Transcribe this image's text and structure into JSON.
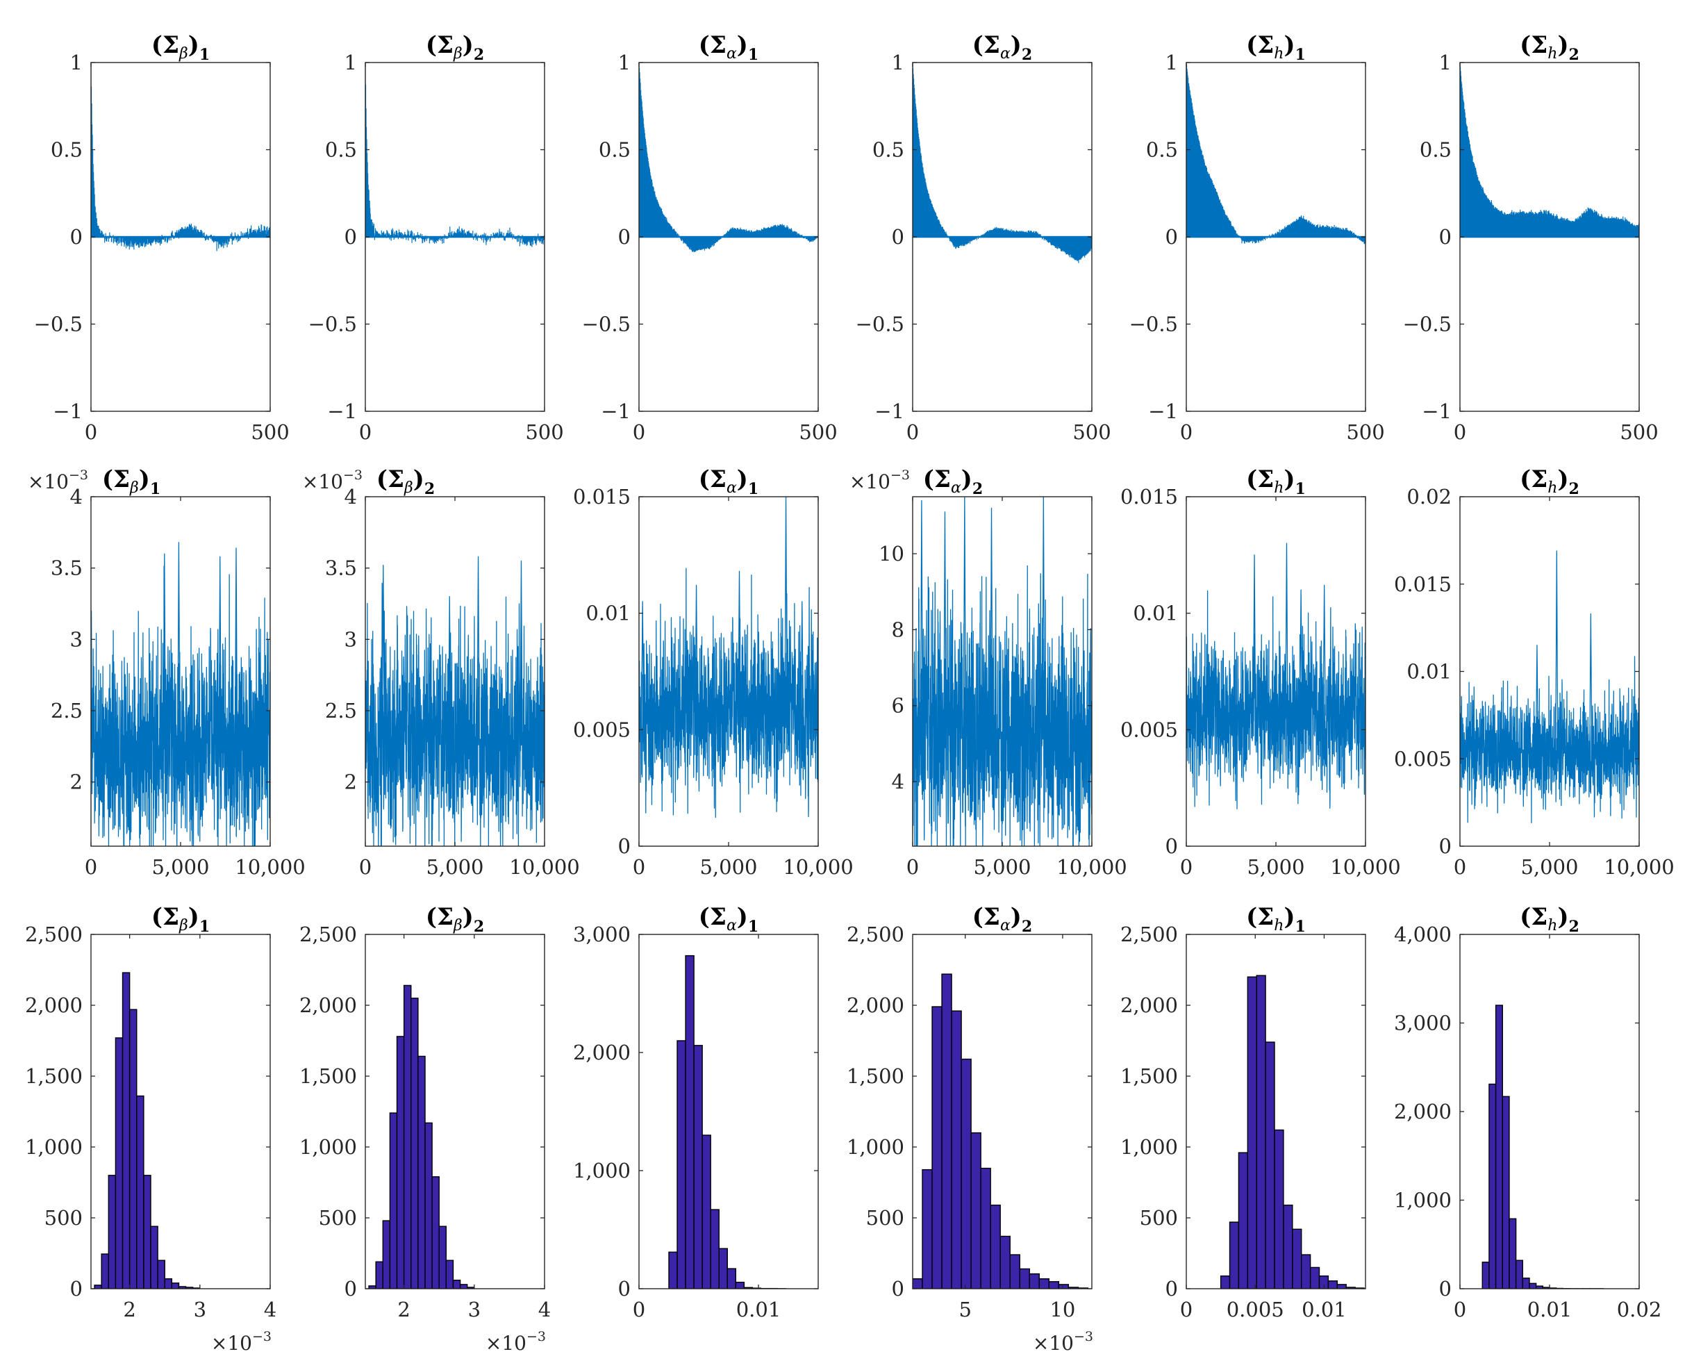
{
  "colors": {
    "trace": "#0072BD",
    "hist_fill": "#3B24A8",
    "hist_edge": "#000000",
    "axis": "#262626"
  },
  "chart_data": [
    {
      "row": "autocorrelation",
      "type": "area",
      "title": {
        "sym": "Σ",
        "sub": "β",
        "num": "1"
      },
      "xlim": [
        0,
        500
      ],
      "ylim": [
        -1,
        1
      ],
      "xticks": [
        "0",
        "500"
      ],
      "yticks": [
        "1",
        "0.5",
        "0",
        "−0.5",
        "−1"
      ],
      "acf": {
        "decay": 7,
        "noise": 0.03,
        "wave": [
          [
            0,
            0
          ],
          [
            40,
            0.002
          ],
          [
            120,
            -0.05
          ],
          [
            200,
            -0.02
          ],
          [
            280,
            0.06
          ],
          [
            360,
            -0.04
          ],
          [
            440,
            0.02
          ],
          [
            490,
            0.05
          ],
          [
            500,
            0.03
          ]
        ]
      }
    },
    {
      "row": "autocorrelation",
      "type": "area",
      "title": {
        "sym": "Σ",
        "sub": "β",
        "num": "2"
      },
      "xlim": [
        0,
        500
      ],
      "ylim": [
        -1,
        1
      ],
      "xticks": [
        "0",
        "500"
      ],
      "yticks": [
        "1",
        "0.5",
        "0",
        "−0.5",
        "−1"
      ],
      "acf": {
        "decay": 7,
        "noise": 0.03,
        "wave": [
          [
            0,
            0
          ],
          [
            60,
            0.02
          ],
          [
            110,
            0.01
          ],
          [
            200,
            -0.02
          ],
          [
            260,
            0.03
          ],
          [
            330,
            -0.01
          ],
          [
            400,
            0.02
          ],
          [
            450,
            -0.03
          ],
          [
            500,
            -0.01
          ]
        ]
      }
    },
    {
      "row": "autocorrelation",
      "type": "area",
      "title": {
        "sym": "Σ",
        "sub": "α",
        "num": "1"
      },
      "xlim": [
        0,
        500
      ],
      "ylim": [
        -1,
        1
      ],
      "xticks": [
        "0",
        "500"
      ],
      "yticks": [
        "1",
        "0.5",
        "0",
        "−0.5",
        "−1"
      ],
      "acf": {
        "decay": 30,
        "noise": 0.01,
        "wave": [
          [
            0,
            0
          ],
          [
            60,
            0.03
          ],
          [
            100,
            0
          ],
          [
            150,
            -0.09
          ],
          [
            200,
            -0.06
          ],
          [
            260,
            0.05
          ],
          [
            320,
            0.03
          ],
          [
            400,
            0.07
          ],
          [
            450,
            0.01
          ],
          [
            480,
            -0.03
          ],
          [
            500,
            0
          ]
        ]
      }
    },
    {
      "row": "autocorrelation",
      "type": "area",
      "title": {
        "sym": "Σ",
        "sub": "α",
        "num": "2"
      },
      "xlim": [
        0,
        500
      ],
      "ylim": [
        -1,
        1
      ],
      "xticks": [
        "0",
        "500"
      ],
      "yticks": [
        "1",
        "0.5",
        "0",
        "−0.5",
        "−1"
      ],
      "acf": {
        "decay": 30,
        "noise": 0.01,
        "wave": [
          [
            0,
            0
          ],
          [
            60,
            0.02
          ],
          [
            90,
            -0.02
          ],
          [
            120,
            -0.08
          ],
          [
            170,
            -0.02
          ],
          [
            230,
            0.05
          ],
          [
            280,
            0.03
          ],
          [
            340,
            0.03
          ],
          [
            380,
            -0.03
          ],
          [
            420,
            -0.08
          ],
          [
            460,
            -0.14
          ],
          [
            490,
            -0.09
          ],
          [
            500,
            -0.06
          ]
        ]
      }
    },
    {
      "row": "autocorrelation",
      "type": "area",
      "title": {
        "sym": "Σ",
        "sub": "h",
        "num": "1"
      },
      "xlim": [
        0,
        500
      ],
      "ylim": [
        -1,
        1
      ],
      "xticks": [
        "0",
        "500"
      ],
      "yticks": [
        "1",
        "0.5",
        "0",
        "−0.5",
        "−1"
      ],
      "acf": {
        "decay": 55,
        "noise": 0.012,
        "wave": [
          [
            0,
            0
          ],
          [
            80,
            0.05
          ],
          [
            130,
            -0.04
          ],
          [
            160,
            -0.08
          ],
          [
            210,
            -0.04
          ],
          [
            260,
            0.02
          ],
          [
            320,
            0.11
          ],
          [
            360,
            0.06
          ],
          [
            420,
            0.05
          ],
          [
            460,
            0.03
          ],
          [
            500,
            -0.04
          ]
        ]
      }
    },
    {
      "row": "autocorrelation",
      "type": "area",
      "title": {
        "sym": "Σ",
        "sub": "h",
        "num": "2"
      },
      "xlim": [
        0,
        500
      ],
      "ylim": [
        -1,
        1
      ],
      "xticks": [
        "0",
        "500"
      ],
      "yticks": [
        "1",
        "0.5",
        "0",
        "−0.5",
        "−1"
      ],
      "acf": {
        "decay": 35,
        "noise": 0.015,
        "wave": [
          [
            0,
            0
          ],
          [
            40,
            0.1
          ],
          [
            80,
            0.11
          ],
          [
            120,
            0.1
          ],
          [
            170,
            0.13
          ],
          [
            240,
            0.14
          ],
          [
            280,
            0.1
          ],
          [
            320,
            0.09
          ],
          [
            360,
            0.16
          ],
          [
            400,
            0.11
          ],
          [
            460,
            0.1
          ],
          [
            490,
            0.05
          ],
          [
            500,
            0.08
          ]
        ]
      }
    },
    {
      "row": "trace",
      "type": "line",
      "title": {
        "sym": "Σ",
        "sub": "β",
        "num": "1"
      },
      "multiplier": {
        "base": "×10",
        "exp": "−3"
      },
      "n": 10000,
      "xlim": [
        0,
        10000
      ],
      "ylim": [
        1.55,
        4
      ],
      "xticks": [
        "0",
        "5,000",
        "10,000"
      ],
      "yticks": [
        "2",
        "2.5",
        "3",
        "3.5",
        "4"
      ],
      "ytickvals": [
        2,
        2.5,
        3,
        3.5,
        4
      ],
      "sample": {
        "mean": 2.25,
        "sd": 0.33,
        "peaks": [
          [
            4900,
            3.68
          ],
          [
            8100,
            3.64
          ],
          [
            7200,
            3.58
          ],
          [
            4100,
            3.6
          ]
        ]
      }
    },
    {
      "row": "trace",
      "type": "line",
      "title": {
        "sym": "Σ",
        "sub": "β",
        "num": "2"
      },
      "multiplier": {
        "base": "×10",
        "exp": "−3"
      },
      "n": 10000,
      "xlim": [
        0,
        10000
      ],
      "ylim": [
        1.55,
        4
      ],
      "xticks": [
        "0",
        "5,000",
        "10,000"
      ],
      "yticks": [
        "2",
        "2.5",
        "3",
        "3.5",
        "4"
      ],
      "ytickvals": [
        2,
        2.5,
        3,
        3.5,
        4
      ],
      "sample": {
        "mean": 2.3,
        "sd": 0.33,
        "peaks": [
          [
            1000,
            3.52
          ],
          [
            6300,
            3.58
          ],
          [
            8700,
            3.55
          ],
          [
            4700,
            3.3
          ]
        ]
      }
    },
    {
      "row": "trace",
      "type": "line",
      "title": {
        "sym": "Σ",
        "sub": "α",
        "num": "1"
      },
      "n": 10000,
      "xlim": [
        0,
        10000
      ],
      "ylim": [
        0,
        0.015
      ],
      "xticks": [
        "0",
        "5,000",
        "10,000"
      ],
      "yticks": [
        "0",
        "0.005",
        "0.01",
        "0.015"
      ],
      "ytickvals": [
        0,
        0.005,
        0.01,
        0.015
      ],
      "sample": {
        "mean": 0.0058,
        "sd": 0.0016,
        "peaks": [
          [
            8200,
            0.015
          ],
          [
            5600,
            0.0118
          ],
          [
            3200,
            0.0112
          ],
          [
            9100,
            0.0105
          ],
          [
            200,
            0.0105
          ]
        ]
      }
    },
    {
      "row": "trace",
      "type": "line",
      "title": {
        "sym": "Σ",
        "sub": "α",
        "num": "2"
      },
      "multiplier": {
        "base": "×10",
        "exp": "−3"
      },
      "n": 10000,
      "xlim": [
        0,
        10000
      ],
      "ylim": [
        2.3,
        11.5
      ],
      "xticks": [
        "0",
        "5,000",
        "10,000"
      ],
      "yticks": [
        "4",
        "6",
        "8",
        "10"
      ],
      "ytickvals": [
        4,
        6,
        8,
        10
      ],
      "sample": {
        "mean": 5.3,
        "sd": 1.45,
        "peaks": [
          [
            2900,
            11.5
          ],
          [
            7300,
            11.5
          ],
          [
            500,
            11.4
          ],
          [
            1800,
            11.1
          ],
          [
            4400,
            11.2
          ]
        ]
      }
    },
    {
      "row": "trace",
      "type": "line",
      "title": {
        "sym": "Σ",
        "sub": "h",
        "num": "1"
      },
      "n": 10000,
      "xlim": [
        0,
        10000
      ],
      "ylim": [
        0,
        0.015
      ],
      "xticks": [
        "0",
        "5,000",
        "10,000"
      ],
      "yticks": [
        "0",
        "0.005",
        "0.01",
        "0.015"
      ],
      "ytickvals": [
        0,
        0.005,
        0.01,
        0.015
      ],
      "sample": {
        "mean": 0.0056,
        "sd": 0.0014,
        "peaks": [
          [
            5600,
            0.013
          ],
          [
            3800,
            0.0125
          ],
          [
            7700,
            0.0112
          ],
          [
            6400,
            0.011
          ]
        ]
      }
    },
    {
      "row": "trace",
      "type": "line",
      "title": {
        "sym": "Σ",
        "sub": "h",
        "num": "2"
      },
      "n": 10000,
      "xlim": [
        0,
        10000
      ],
      "ylim": [
        0,
        0.02
      ],
      "xticks": [
        "0",
        "5,000",
        "10,000"
      ],
      "yticks": [
        "0",
        "0.005",
        "0.01",
        "0.015",
        "0.02"
      ],
      "ytickvals": [
        0,
        0.005,
        0.01,
        0.015,
        0.02
      ],
      "sample": {
        "mean": 0.0055,
        "sd": 0.0014,
        "peaks": [
          [
            5400,
            0.0169
          ],
          [
            7300,
            0.0133
          ],
          [
            4300,
            0.0115
          ]
        ]
      }
    },
    {
      "row": "histogram",
      "type": "bar",
      "title": {
        "sym": "Σ",
        "sub": "β",
        "num": "1"
      },
      "multiplier": {
        "base": "×10",
        "exp": "−3"
      },
      "xlim": [
        1.45,
        4
      ],
      "ylim": [
        0,
        2500
      ],
      "xticks": [
        "2",
        "3",
        "4"
      ],
      "xtickvals": [
        2,
        3,
        4
      ],
      "yticks": [
        "0",
        "500",
        "1,000",
        "1,500",
        "2,000",
        "2,500"
      ],
      "ytickvals": [
        0,
        500,
        1000,
        1500,
        2000,
        2500
      ],
      "bin_start": 1.5,
      "bin_width": 0.1,
      "counts": [
        25,
        245,
        800,
        1770,
        2230,
        1970,
        1360,
        800,
        440,
        200,
        70,
        40,
        15,
        10,
        5
      ]
    },
    {
      "row": "histogram",
      "type": "bar",
      "title": {
        "sym": "Σ",
        "sub": "β",
        "num": "2"
      },
      "multiplier": {
        "base": "×10",
        "exp": "−3"
      },
      "xlim": [
        1.45,
        4
      ],
      "ylim": [
        0,
        2500
      ],
      "xticks": [
        "2",
        "3",
        "4"
      ],
      "xtickvals": [
        2,
        3,
        4
      ],
      "yticks": [
        "0",
        "500",
        "1,000",
        "1,500",
        "2,000",
        "2,500"
      ],
      "ytickvals": [
        0,
        500,
        1000,
        1500,
        2000,
        2500
      ],
      "bin_start": 1.5,
      "bin_width": 0.1,
      "counts": [
        20,
        190,
        480,
        1240,
        1780,
        2140,
        2050,
        1640,
        1170,
        790,
        440,
        200,
        60,
        30,
        10
      ]
    },
    {
      "row": "histogram",
      "type": "bar",
      "title": {
        "sym": "Σ",
        "sub": "α",
        "num": "1"
      },
      "xlim": [
        0,
        0.015
      ],
      "ylim": [
        0,
        3000
      ],
      "xticks": [
        "0",
        "0.01"
      ],
      "xtickvals": [
        0,
        0.01
      ],
      "yticks": [
        "0",
        "1,000",
        "2,000",
        "3,000"
      ],
      "ytickvals": [
        0,
        1000,
        2000,
        3000
      ],
      "bin_start": 0.0025,
      "bin_width": 0.0007,
      "counts": [
        310,
        2100,
        2820,
        2060,
        1300,
        670,
        340,
        170,
        55,
        10,
        5,
        2,
        2,
        1
      ]
    },
    {
      "row": "histogram",
      "type": "bar",
      "title": {
        "sym": "Σ",
        "sub": "α",
        "num": "2"
      },
      "multiplier": {
        "base": "×10",
        "exp": "−3"
      },
      "xlim": [
        2.3,
        11.5
      ],
      "ylim": [
        0,
        2500
      ],
      "xticks": [
        "5",
        "10"
      ],
      "xtickvals": [
        5,
        10
      ],
      "yticks": [
        "0",
        "500",
        "1,000",
        "1,500",
        "2,000",
        "2,500"
      ],
      "ytickvals": [
        0,
        500,
        1000,
        1500,
        2000,
        2500
      ],
      "bin_start": 2.3,
      "bin_width": 0.5,
      "counts": [
        70,
        840,
        1990,
        2220,
        1960,
        1620,
        1100,
        850,
        590,
        370,
        240,
        140,
        105,
        70,
        50,
        30,
        10,
        5
      ]
    },
    {
      "row": "histogram",
      "type": "bar",
      "title": {
        "sym": "Σ",
        "sub": "h",
        "num": "1"
      },
      "xlim": [
        0,
        0.013
      ],
      "ylim": [
        0,
        2500
      ],
      "xticks": [
        "0",
        "0.005",
        "0.01"
      ],
      "xtickvals": [
        0,
        0.005,
        0.01
      ],
      "yticks": [
        "0",
        "500",
        "1,000",
        "1,500",
        "2,000",
        "2,500"
      ],
      "ytickvals": [
        0,
        500,
        1000,
        1500,
        2000,
        2500
      ],
      "bin_start": 0.0025,
      "bin_width": 0.00065,
      "counts": [
        90,
        470,
        960,
        2200,
        2210,
        1740,
        1120,
        590,
        420,
        240,
        150,
        90,
        55,
        30,
        10,
        5
      ]
    },
    {
      "row": "histogram",
      "type": "bar",
      "title": {
        "sym": "Σ",
        "sub": "h",
        "num": "2"
      },
      "xlim": [
        0,
        0.02
      ],
      "ylim": [
        0,
        4000
      ],
      "xticks": [
        "0",
        "0.01",
        "0.02"
      ],
      "xtickvals": [
        0,
        0.01,
        0.02
      ],
      "yticks": [
        "0",
        "1,000",
        "2,000",
        "3,000",
        "4,000"
      ],
      "ytickvals": [
        0,
        1000,
        2000,
        3000,
        4000
      ],
      "bin_start": 0.0025,
      "bin_width": 0.00075,
      "counts": [
        300,
        2310,
        3200,
        2170,
        790,
        320,
        120,
        60,
        30,
        15,
        8,
        4,
        2,
        1,
        1,
        1,
        1,
        1
      ]
    }
  ]
}
